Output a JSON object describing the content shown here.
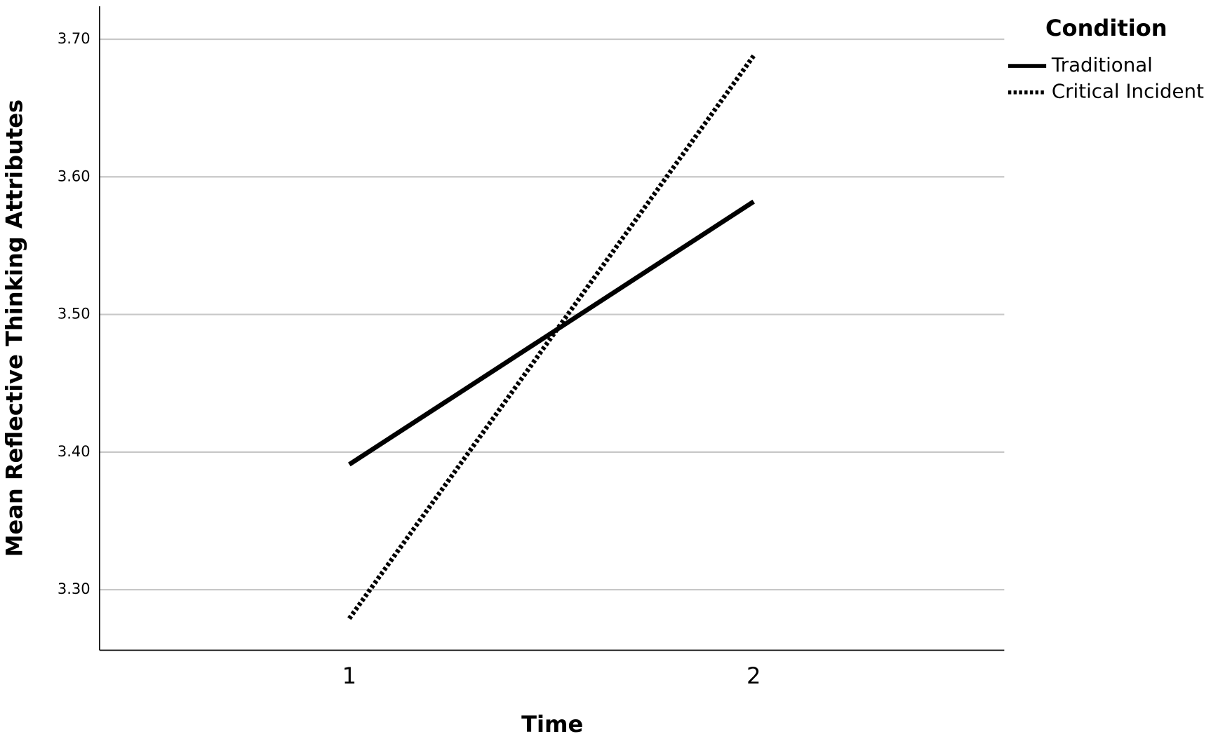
{
  "chart_data": {
    "type": "line",
    "x_label": "Time",
    "y_label": "Mean Reflective Thinking Attributes",
    "categories": [
      "1",
      "2"
    ],
    "series": [
      {
        "name": "Traditional",
        "color": "#000000",
        "style": "solid",
        "values": [
          3.391,
          3.582
        ]
      },
      {
        "name": "Critical Incident",
        "color": "#000000",
        "style": "dotted",
        "values": [
          3.279,
          3.688
        ]
      }
    ],
    "ylim": [
      3.256,
      3.724
    ],
    "yticks": [
      {
        "value": 3.3,
        "label": "3.30"
      },
      {
        "value": 3.4,
        "label": "3.40"
      },
      {
        "value": 3.5,
        "label": "3.50"
      },
      {
        "value": 3.6,
        "label": "3.60"
      },
      {
        "value": 3.7,
        "label": "3.70"
      }
    ],
    "grid": true,
    "legend_title": "Condition",
    "legend_position": "right"
  }
}
